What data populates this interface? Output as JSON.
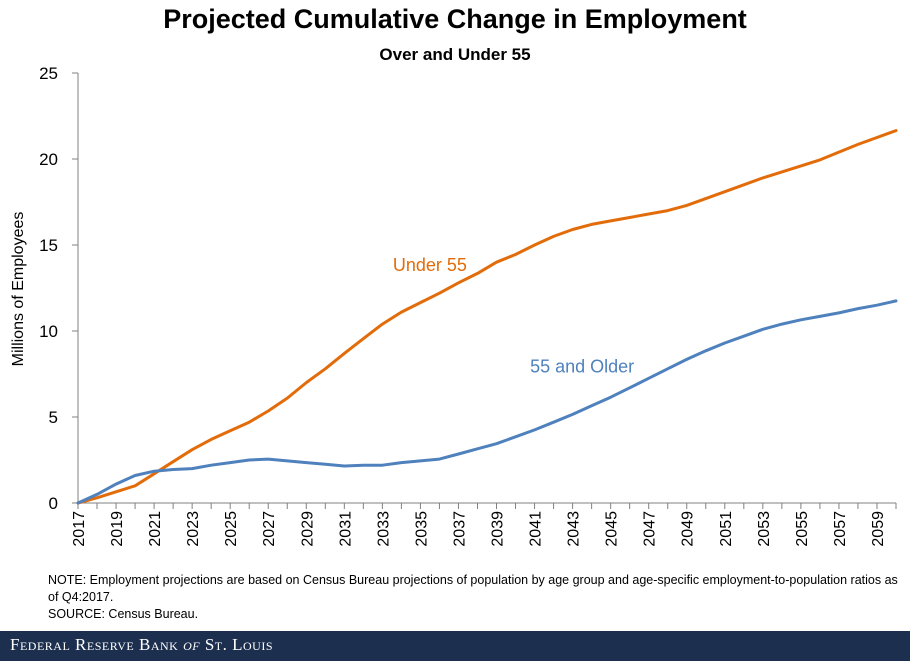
{
  "chart_data": {
    "type": "line",
    "title": "Projected Cumulative Change in Employment",
    "subtitle": "Over and Under 55",
    "ylabel": "Millions of Employees",
    "xlabel": "",
    "ylim": [
      0,
      25
    ],
    "yticks": [
      0,
      5,
      10,
      15,
      20,
      25
    ],
    "xlim": [
      2017,
      2060
    ],
    "xticks": [
      "2017",
      "2019",
      "2021",
      "2023",
      "2025",
      "2027",
      "2029",
      "2031",
      "2033",
      "2035",
      "2037",
      "2039",
      "2041",
      "2043",
      "2045",
      "2047",
      "2049",
      "2051",
      "2053",
      "2055",
      "2057",
      "2059"
    ],
    "grid": false,
    "x": [
      2017,
      2018,
      2019,
      2020,
      2021,
      2022,
      2023,
      2024,
      2025,
      2026,
      2027,
      2028,
      2029,
      2030,
      2031,
      2032,
      2033,
      2034,
      2035,
      2036,
      2037,
      2038,
      2039,
      2040,
      2041,
      2042,
      2043,
      2044,
      2045,
      2046,
      2047,
      2048,
      2049,
      2050,
      2051,
      2052,
      2053,
      2054,
      2055,
      2056,
      2057,
      2058,
      2059,
      2060
    ],
    "series": [
      {
        "name": "Under 55",
        "color": "#e36c0a",
        "values": [
          0,
          0.3,
          0.65,
          1.0,
          1.7,
          2.4,
          3.1,
          3.7,
          4.2,
          4.7,
          5.35,
          6.1,
          7.0,
          7.8,
          8.7,
          9.55,
          10.4,
          11.1,
          11.65,
          12.2,
          12.8,
          13.35,
          14.0,
          14.45,
          15.0,
          15.5,
          15.9,
          16.2,
          16.4,
          16.6,
          16.8,
          17.0,
          17.3,
          17.7,
          18.1,
          18.5,
          18.9,
          19.25,
          19.6,
          19.95,
          20.4,
          20.85,
          21.25,
          21.65
        ]
      },
      {
        "name": "55 and Older",
        "color": "#4f81bd",
        "values": [
          0,
          0.5,
          1.1,
          1.6,
          1.85,
          1.95,
          2.0,
          2.2,
          2.35,
          2.5,
          2.55,
          2.45,
          2.35,
          2.25,
          2.15,
          2.2,
          2.2,
          2.35,
          2.45,
          2.55,
          2.85,
          3.15,
          3.45,
          3.85,
          4.25,
          4.7,
          5.15,
          5.65,
          6.15,
          6.7,
          7.25,
          7.8,
          8.35,
          8.85,
          9.3,
          9.7,
          10.1,
          10.4,
          10.65,
          10.85,
          11.05,
          11.3,
          11.5,
          11.75
        ]
      }
    ],
    "annotations": [
      {
        "text": "Under 55",
        "series": "Under 55",
        "color": "#e36c0a"
      },
      {
        "text": "55 and Older",
        "series": "55 and Older",
        "color": "#4f81bd"
      }
    ]
  },
  "notes": {
    "note": "NOTE: Employment  projections are based on Census Bureau projections of population by age group and age-specific employment-to-population ratios as of Q4:2017.",
    "source": "SOURCE: Census Bureau."
  },
  "footer": {
    "org_line": "Federal Reserve Bank of St. Louis",
    "org_prefix": "Federal Reserve Bank",
    "org_of": "of",
    "org_suffix": "St. Louis",
    "background": "#1d2f4f"
  }
}
